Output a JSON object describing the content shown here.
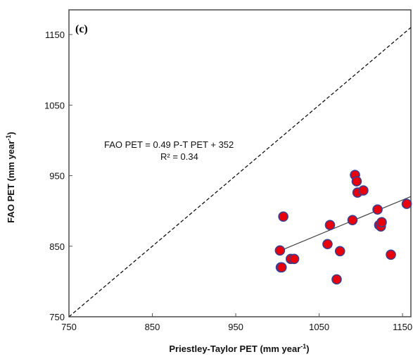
{
  "chart_data": {
    "type": "scatter",
    "panel_label": "(c)",
    "xlabel": {
      "text": "Priestley-Taylor PET (mm year",
      "sup": "-1",
      "close": ")"
    },
    "ylabel": {
      "text": "FAO PET (mm year",
      "sup": "-1",
      "close": ")"
    },
    "xlim": [
      750,
      1160
    ],
    "ylim": [
      750,
      1185
    ],
    "xticks": [
      750,
      850,
      950,
      1050,
      1150
    ],
    "yticks": [
      750,
      850,
      950,
      1050,
      1150
    ],
    "grid": false,
    "one_to_one_line": {
      "style": "dashed",
      "from": [
        750,
        750
      ],
      "to": [
        1160,
        1160
      ]
    },
    "fit_line": {
      "slope": 0.49,
      "intercept": 352,
      "x_range": [
        1003,
        1160
      ]
    },
    "annotations": {
      "equation": "FAO PET = 0.49 P-T PET + 352",
      "r2": "R² = 0.34"
    },
    "marker_color": "#e8000b",
    "marker_edge": "#3b3f8f",
    "points": [
      {
        "x": 1003,
        "y": 844
      },
      {
        "x": 1004,
        "y": 820
      },
      {
        "x": 1005,
        "y": 820
      },
      {
        "x": 1007,
        "y": 892
      },
      {
        "x": 1016,
        "y": 832
      },
      {
        "x": 1020,
        "y": 832
      },
      {
        "x": 1060,
        "y": 853
      },
      {
        "x": 1063,
        "y": 880
      },
      {
        "x": 1071,
        "y": 803
      },
      {
        "x": 1075,
        "y": 843
      },
      {
        "x": 1090,
        "y": 887
      },
      {
        "x": 1093,
        "y": 951
      },
      {
        "x": 1095,
        "y": 942
      },
      {
        "x": 1096,
        "y": 926
      },
      {
        "x": 1103,
        "y": 929
      },
      {
        "x": 1120,
        "y": 902
      },
      {
        "x": 1122,
        "y": 880
      },
      {
        "x": 1124,
        "y": 878
      },
      {
        "x": 1125,
        "y": 884
      },
      {
        "x": 1136,
        "y": 838
      },
      {
        "x": 1155,
        "y": 910
      }
    ]
  }
}
